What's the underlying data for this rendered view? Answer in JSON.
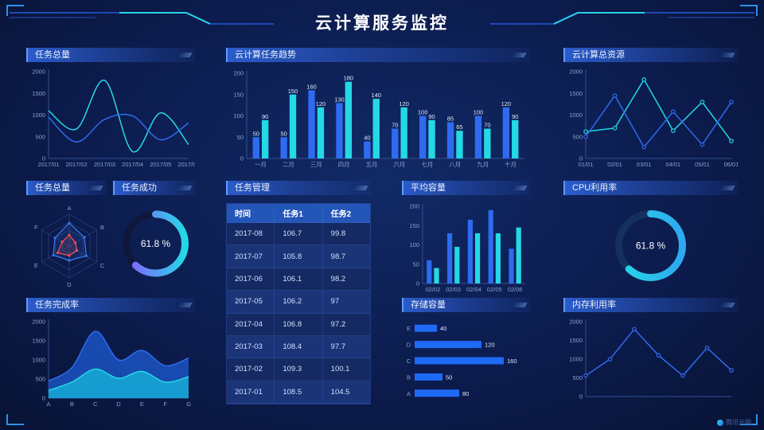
{
  "header": {
    "title": "云计算服务监控"
  },
  "watermark": {
    "label": "腾讯云图"
  },
  "panels": {
    "task_total_line": {
      "title": "任务总量"
    },
    "trend": {
      "title": "云计算任务趋势"
    },
    "total_resources": {
      "title": "云计算总资源"
    },
    "task_total_radar": {
      "title": "任务总量"
    },
    "task_success": {
      "title": "任务成功"
    },
    "task_manage": {
      "title": "任务管理"
    },
    "avg_capacity": {
      "title": "平均容量"
    },
    "cpu": {
      "title": "CPU利用率"
    },
    "completion": {
      "title": "任务完成率"
    },
    "storage": {
      "title": "存储容量"
    },
    "memory": {
      "title": "内存利用率"
    }
  },
  "table": {
    "columns": [
      "时间",
      "任务1",
      "任务2"
    ],
    "rows": [
      [
        "2017-08",
        "106.7",
        "99.8"
      ],
      [
        "2017-07",
        "105.8",
        "98.7"
      ],
      [
        "2017-06",
        "106.1",
        "98.2"
      ],
      [
        "2017-05",
        "106.2",
        "97"
      ],
      [
        "2017-04",
        "106.8",
        "97.2"
      ],
      [
        "2017-03",
        "108.4",
        "97.7"
      ],
      [
        "2017-02",
        "109.3",
        "100.1"
      ],
      [
        "2017-01",
        "108.5",
        "104.5"
      ]
    ]
  },
  "chart_data": [
    {
      "id": "task_total_line",
      "type": "line",
      "title": "任务总量",
      "smooth": true,
      "x": [
        "2017/01",
        "2017/02",
        "2017/03",
        "2017/04",
        "2017/05",
        "2017/06"
      ],
      "ylim": [
        0,
        2000
      ],
      "yticks": [
        0,
        500,
        1000,
        1500,
        2000
      ],
      "series": [
        {
          "name": "series-1",
          "color": "#24d8e6",
          "values": [
            1100,
            680,
            1800,
            160,
            1050,
            320
          ]
        },
        {
          "name": "series-2",
          "color": "#2e6bf0",
          "values": [
            950,
            380,
            900,
            980,
            430,
            820
          ]
        }
      ]
    },
    {
      "id": "trend",
      "type": "bargroup",
      "title": "云计算任务趋势",
      "labels": true,
      "categories": [
        "一月",
        "二月",
        "三月",
        "四月",
        "五月",
        "六月",
        "七月",
        "八月",
        "九月",
        "十月"
      ],
      "ylim": [
        0,
        200
      ],
      "yticks": [
        0,
        50,
        100,
        150,
        200
      ],
      "series": [
        {
          "name": "series-1",
          "color": "#2e6bf0",
          "values": [
            50,
            50,
            160,
            130,
            40,
            70,
            100,
            85,
            100,
            120
          ]
        },
        {
          "name": "series-2",
          "color": "#24d8e6",
          "values": [
            90,
            150,
            120,
            180,
            140,
            120,
            90,
            65,
            70,
            90
          ]
        }
      ]
    },
    {
      "id": "total_resources",
      "type": "line",
      "title": "云计算总资源",
      "markers": true,
      "x": [
        "01/01",
        "02/01",
        "03/01",
        "04/01",
        "05/01",
        "06/01"
      ],
      "ylim": [
        0,
        2000
      ],
      "yticks": [
        0,
        500,
        1000,
        1500,
        2000
      ],
      "series": [
        {
          "name": "series-1",
          "color": "#24d8e6",
          "values": [
            620,
            700,
            1820,
            640,
            1300,
            400
          ]
        },
        {
          "name": "series-2",
          "color": "#2e6bf0",
          "values": [
            500,
            1450,
            260,
            1080,
            320,
            1300
          ]
        }
      ]
    },
    {
      "id": "radar",
      "type": "radar",
      "title": "任务总量",
      "indicators": [
        "A",
        "B",
        "C",
        "D",
        "E",
        "F"
      ],
      "max": 100,
      "series": [
        {
          "name": "series-1",
          "color": "#3a7bf0",
          "values": [
            72,
            55,
            62,
            45,
            58,
            52
          ]
        },
        {
          "name": "series-2",
          "color": "#ff5050",
          "values": [
            35,
            22,
            28,
            30,
            42,
            26
          ]
        }
      ]
    },
    {
      "id": "success_gauge",
      "type": "donut",
      "title": "任务成功",
      "value": 61.8,
      "label": "61.8 %",
      "r": 37,
      "colors": [
        "#8a5cff",
        "#24d8e6"
      ],
      "track": "#10173d"
    },
    {
      "id": "avg_capacity",
      "type": "bargroup",
      "title": "平均容量",
      "labels": false,
      "categories": [
        "02/02",
        "02/03",
        "02/04",
        "02/05",
        "02/06"
      ],
      "ylim": [
        0,
        200
      ],
      "yticks": [
        0,
        50,
        100,
        150,
        200
      ],
      "series": [
        {
          "name": "series-1",
          "color": "#2e6bf0",
          "values": [
            60,
            130,
            165,
            190,
            90
          ]
        },
        {
          "name": "series-2",
          "color": "#24d8e6",
          "values": [
            40,
            95,
            130,
            130,
            145
          ]
        }
      ]
    },
    {
      "id": "cpu_gauge",
      "type": "donut",
      "title": "CPU利用率",
      "value": 61.8,
      "label": "61.8 %",
      "r": 40,
      "colors": [
        "#24d8e6",
        "#2ea8f0"
      ],
      "track": "#15305e"
    },
    {
      "id": "completion",
      "type": "area",
      "title": "任务完成率",
      "smooth": true,
      "x": [
        "A",
        "B",
        "C",
        "D",
        "E",
        "F",
        "G"
      ],
      "ylim": [
        0,
        2000
      ],
      "yticks": [
        0,
        500,
        1000,
        1500,
        2000
      ],
      "series": [
        {
          "name": "series-1",
          "color": "#2e6bf0",
          "fill": "rgba(27,86,201,0.8)",
          "values": [
            450,
            800,
            1750,
            1000,
            1250,
            850,
            1050
          ]
        },
        {
          "name": "series-2",
          "color": "#24d8e6",
          "fill": "rgba(23,184,220,0.75)",
          "values": [
            200,
            420,
            760,
            520,
            700,
            420,
            560
          ]
        }
      ]
    },
    {
      "id": "storage",
      "type": "hbar",
      "title": "存储容量",
      "categories": [
        "E",
        "D",
        "C",
        "B",
        "A"
      ],
      "values": [
        40,
        120,
        160,
        50,
        80
      ],
      "xmax": 170,
      "color": "#1f6af5"
    },
    {
      "id": "memory",
      "type": "line",
      "title": "内存利用率",
      "markers": true,
      "x": [
        "",
        "",
        "",
        "",
        "",
        "",
        ""
      ],
      "ylim": [
        0,
        2000
      ],
      "yticks": [
        0,
        500,
        1000,
        1500,
        2000
      ],
      "series": [
        {
          "name": "series-1",
          "color": "#2e6bf0",
          "values": [
            560,
            1000,
            1800,
            1100,
            560,
            1300,
            700
          ]
        }
      ]
    }
  ]
}
